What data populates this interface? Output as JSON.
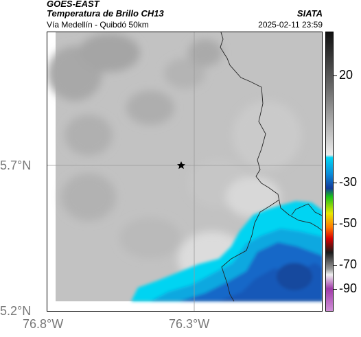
{
  "header": {
    "satellite": "GOES-EAST",
    "product": "Temperatura de Brillo CH13",
    "location": "Vía Medellín - Quibdó 50km",
    "organization": "SIATA",
    "timestamp": "2025-02-11 23:59"
  },
  "map": {
    "lat_labels": [
      {
        "text": "5.7°N",
        "value": 5.7
      },
      {
        "text": "5.2°N",
        "value": 5.2
      }
    ],
    "lon_labels": [
      {
        "text": "76.8°W",
        "value": -76.8
      },
      {
        "text": "76.3°W",
        "value": -76.3
      }
    ],
    "marker": {
      "name": "star",
      "lat": 5.7,
      "lon": -76.32
    }
  },
  "colorbar": {
    "labels": [
      "20",
      "-30",
      "-50",
      "-70",
      "-90"
    ],
    "min": -95,
    "max": 45,
    "colors": {
      "cold": "#8a2a9a",
      "cyan": "#00d0f0",
      "blue": "#1050c0",
      "warm_gray": "#c8c8c8"
    }
  }
}
